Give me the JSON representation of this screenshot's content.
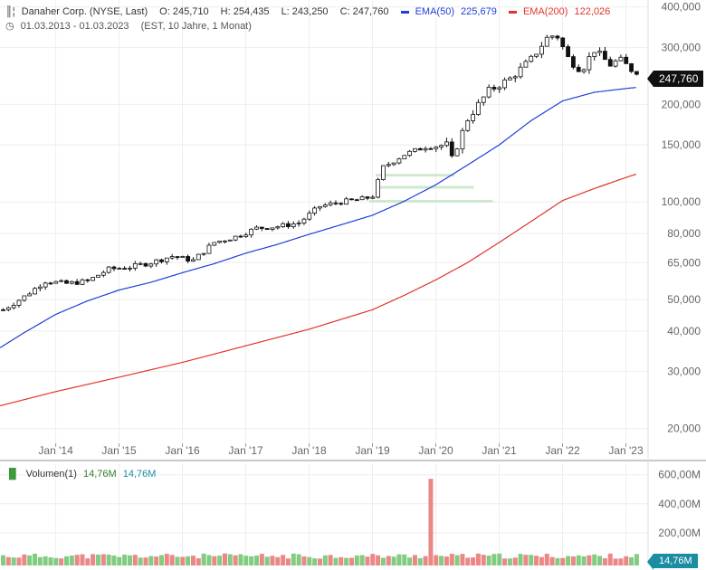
{
  "header": {
    "title": "Danaher Corp. (NYSE, Last)",
    "open": "O: 245,710",
    "high": "H: 254,435",
    "low": "L: 243,250",
    "close": "C: 247,760",
    "ema50_label": "EMA(50)",
    "ema50_value": "225,679",
    "ema200_label": "EMA(200)",
    "ema200_value": "122,026",
    "range": "01.03.2013 - 01.03.2023",
    "range_note": "(EST, 10 Jahre, 1 Monat)",
    "last_price_tag": "247,760"
  },
  "volume_header": {
    "label": "Volumen(1)",
    "value1": "14,76M",
    "value2": "14,76M",
    "last_tag": "14,76M"
  },
  "colors": {
    "ema50": "#1f3fd6",
    "ema200": "#e0332b",
    "candle": "#111111",
    "vol_up": "#6cc36c",
    "vol_down": "#e67373",
    "support": "#cfe9cf"
  },
  "chart_data": [
    {
      "type": "candlestick",
      "scale": "log",
      "ylim": [
        18000,
        420000
      ],
      "y_ticks": [
        "400,000",
        "300,000",
        "200,000",
        "150,000",
        "100,000",
        "80,000",
        "65,000",
        "50,000",
        "40,000",
        "30,000",
        "20,000"
      ],
      "y_tick_values": [
        400000,
        300000,
        200000,
        150000,
        100000,
        80000,
        65000,
        50000,
        40000,
        30000,
        20000
      ],
      "x_ticks": [
        "Jan '14",
        "Jan '15",
        "Jan '16",
        "Jan '17",
        "Jan '18",
        "Jan '19",
        "Jan '20",
        "Jan '21",
        "Jan '22",
        "Jan '23"
      ],
      "x_tick_values": [
        2014.0,
        2015.0,
        2016.0,
        2017.0,
        2018.0,
        2019.0,
        2020.0,
        2021.0,
        2022.0,
        2023.0
      ],
      "xlim": [
        2013.12,
        2023.35
      ],
      "close_anchors": [
        [
          2013.17,
          46500
        ],
        [
          2013.5,
          51000
        ],
        [
          2013.83,
          57000
        ],
        [
          2014.17,
          56000
        ],
        [
          2014.5,
          57000
        ],
        [
          2014.83,
          62000
        ],
        [
          2015.17,
          63000
        ],
        [
          2015.5,
          65000
        ],
        [
          2015.83,
          68000
        ],
        [
          2016.17,
          66000
        ],
        [
          2016.5,
          75000
        ],
        [
          2016.83,
          78000
        ],
        [
          2017.17,
          83000
        ],
        [
          2017.5,
          84000
        ],
        [
          2017.83,
          86000
        ],
        [
          2018.17,
          97000
        ],
        [
          2018.5,
          100000
        ],
        [
          2018.83,
          102000
        ],
        [
          2019.0,
          104000
        ],
        [
          2019.17,
          128000
        ],
        [
          2019.5,
          140000
        ],
        [
          2019.83,
          148000
        ],
        [
          2020.17,
          150000
        ],
        [
          2020.25,
          135000
        ],
        [
          2020.5,
          180000
        ],
        [
          2020.83,
          220000
        ],
        [
          2021.17,
          240000
        ],
        [
          2021.5,
          275000
        ],
        [
          2021.75,
          320000
        ],
        [
          2021.9,
          330000
        ],
        [
          2022.1,
          275000
        ],
        [
          2022.3,
          255000
        ],
        [
          2022.5,
          295000
        ],
        [
          2022.75,
          265000
        ],
        [
          2022.9,
          275000
        ],
        [
          2023.1,
          255000
        ],
        [
          2023.17,
          247760
        ]
      ],
      "ema50_anchors": [
        [
          2013.12,
          35500
        ],
        [
          2013.5,
          39500
        ],
        [
          2014.0,
          45000
        ],
        [
          2014.5,
          49500
        ],
        [
          2015.0,
          53500
        ],
        [
          2015.5,
          56500
        ],
        [
          2016.0,
          60500
        ],
        [
          2016.5,
          64500
        ],
        [
          2017.0,
          69500
        ],
        [
          2017.5,
          74000
        ],
        [
          2018.0,
          79500
        ],
        [
          2018.5,
          85000
        ],
        [
          2019.0,
          91000
        ],
        [
          2019.5,
          100500
        ],
        [
          2020.0,
          113000
        ],
        [
          2020.5,
          130000
        ],
        [
          2021.0,
          150000
        ],
        [
          2021.5,
          178000
        ],
        [
          2022.0,
          205000
        ],
        [
          2022.5,
          218000
        ],
        [
          2023.0,
          224000
        ],
        [
          2023.17,
          225679
        ]
      ],
      "ema200_anchors": [
        [
          2013.12,
          23500
        ],
        [
          2014.0,
          26000
        ],
        [
          2015.0,
          28800
        ],
        [
          2016.0,
          32000
        ],
        [
          2017.0,
          36000
        ],
        [
          2018.0,
          40500
        ],
        [
          2019.0,
          46500
        ],
        [
          2019.5,
          51500
        ],
        [
          2020.0,
          57500
        ],
        [
          2020.5,
          65000
        ],
        [
          2021.0,
          75000
        ],
        [
          2021.5,
          87000
        ],
        [
          2022.0,
          101000
        ],
        [
          2022.5,
          110000
        ],
        [
          2023.0,
          119000
        ],
        [
          2023.17,
          122026
        ]
      ],
      "support_levels": [
        {
          "from": 2019.05,
          "to": 2020.3,
          "value": 121000
        },
        {
          "from": 2019.05,
          "to": 2020.6,
          "value": 111000
        },
        {
          "from": 2018.95,
          "to": 2020.9,
          "value": 100500
        }
      ]
    },
    {
      "type": "bar",
      "title": "Volumen(1)",
      "y_ticks": [
        "600,00M",
        "400,00M",
        "200,00M"
      ],
      "y_tick_values": [
        600,
        400,
        200
      ],
      "ylim": [
        0,
        700
      ],
      "base_volume_m": 40,
      "spike": {
        "x": 2019.88,
        "value": 572
      }
    }
  ]
}
